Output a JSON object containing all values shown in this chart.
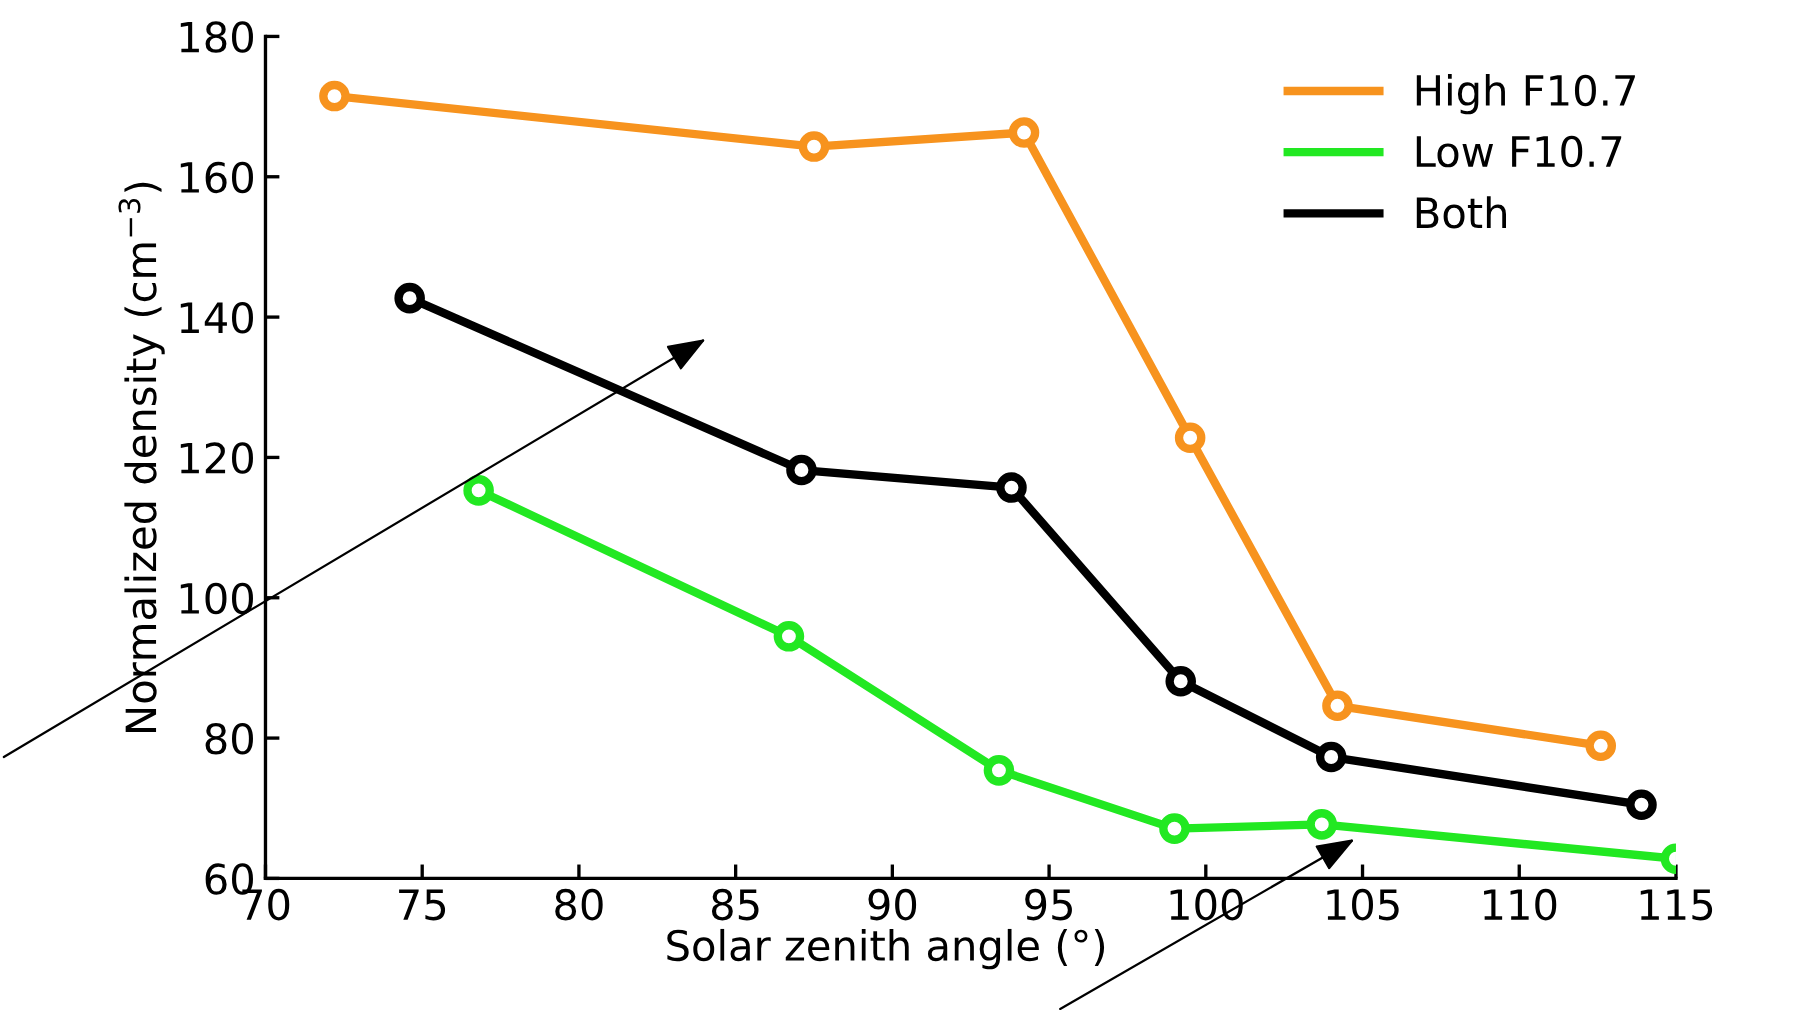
{
  "chart_data": {
    "type": "line",
    "xlabel": "Solar zenith angle (°)",
    "ylabel": "Normalized density (cm$^{−3}$)",
    "series": [
      {
        "name": "High F10.7",
        "color": "#f7931e",
        "x": [
          72.2,
          87.5,
          94.2,
          99.5,
          104.2,
          112.6
        ],
        "values": [
          171.5,
          164.3,
          166.3,
          122.8,
          84.6,
          78.9
        ]
      },
      {
        "name": "Low F10.7",
        "color": "#22e822",
        "x": [
          76.8,
          86.7,
          93.4,
          99.0,
          103.7,
          115.0
        ],
        "values": [
          115.3,
          94.5,
          75.4,
          67.1,
          67.7,
          62.8
        ]
      },
      {
        "name": "Both",
        "color": "#000000",
        "x": [
          74.6,
          87.1,
          93.8,
          99.2,
          104.0,
          113.9
        ],
        "values": [
          142.7,
          118.2,
          115.7,
          88.1,
          77.3,
          70.5
        ]
      }
    ],
    "xlim": [
      70,
      115
    ],
    "xticks": [
      70,
      75,
      80,
      85,
      90,
      95,
      100,
      105,
      110,
      115
    ],
    "ylim": [
      60,
      180
    ],
    "yticks": [
      60,
      80,
      100,
      120,
      140,
      160,
      180
    ],
    "marker": "circle",
    "line_style": "solid",
    "grid": false,
    "legend": "top right"
  }
}
